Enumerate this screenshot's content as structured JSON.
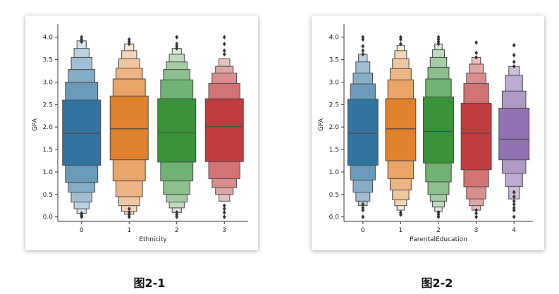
{
  "captions": [
    "图2-1",
    "图2-2"
  ],
  "chart_data": [
    {
      "type": "boxen",
      "xlabel": "Ethnicity",
      "ylabel": "GPA",
      "ylim": [
        -0.1,
        4.2
      ],
      "yticks": [
        0.0,
        0.5,
        1.0,
        1.5,
        2.0,
        2.5,
        3.0,
        3.5,
        4.0
      ],
      "ytick_labels": [
        "0.0",
        "0.5",
        "1.0",
        "1.5",
        "2.0",
        "2.5",
        "3.0",
        "3.5",
        "4.0"
      ],
      "categories": [
        "0",
        "1",
        "2",
        "3"
      ],
      "colors": [
        "#3274a1",
        "#e1812c",
        "#3a923a",
        "#c03d3e"
      ],
      "series": [
        {
          "median": 1.86,
          "boxes": [
            [
              1.15,
              2.6
            ],
            [
              0.77,
              3.0
            ],
            [
              0.55,
              3.28
            ],
            [
              0.33,
              3.55
            ],
            [
              0.18,
              3.75
            ],
            [
              0.08,
              3.92
            ]
          ],
          "outliers": [
            0.0,
            0.04,
            0.08,
            3.9,
            3.95,
            4.0
          ]
        },
        {
          "median": 1.96,
          "boxes": [
            [
              1.27,
              2.69
            ],
            [
              0.8,
              3.07
            ],
            [
              0.45,
              3.31
            ],
            [
              0.25,
              3.52
            ],
            [
              0.12,
              3.7
            ],
            [
              0.06,
              3.85
            ]
          ],
          "outliers": [
            0.0,
            0.05,
            0.1,
            0.18,
            3.85,
            3.9,
            3.95
          ]
        },
        {
          "median": 1.88,
          "boxes": [
            [
              1.22,
              2.63
            ],
            [
              0.8,
              3.05
            ],
            [
              0.5,
              3.28
            ],
            [
              0.33,
              3.45
            ],
            [
              0.2,
              3.62
            ],
            [
              0.1,
              3.75
            ]
          ],
          "outliers": [
            0.0,
            0.05,
            0.1,
            3.75,
            3.8,
            3.85,
            4.0
          ]
        },
        {
          "median": 2.01,
          "boxes": [
            [
              1.23,
              2.63
            ],
            [
              0.85,
              2.97
            ],
            [
              0.65,
              3.2
            ],
            [
              0.5,
              3.35
            ],
            [
              0.35,
              3.52
            ]
          ],
          "outliers": [
            0.0,
            0.1,
            0.18,
            0.25,
            3.62,
            3.7,
            3.85,
            4.0
          ]
        }
      ]
    },
    {
      "type": "boxen",
      "xlabel": "ParentalEducation",
      "ylabel": "GPA",
      "ylim": [
        -0.1,
        4.2
      ],
      "yticks": [
        0.0,
        0.5,
        1.0,
        1.5,
        2.0,
        2.5,
        3.0,
        3.5,
        4.0
      ],
      "ytick_labels": [
        "0.0",
        "0.5",
        "1.0",
        "1.5",
        "2.0",
        "2.5",
        "3.0",
        "3.5",
        "4.0"
      ],
      "categories": [
        "0",
        "1",
        "2",
        "3",
        "4"
      ],
      "colors": [
        "#3274a1",
        "#e1812c",
        "#3a923a",
        "#c03d3e",
        "#9372b2"
      ],
      "series": [
        {
          "median": 1.86,
          "boxes": [
            [
              1.15,
              2.62
            ],
            [
              0.82,
              2.96
            ],
            [
              0.55,
              3.2
            ],
            [
              0.35,
              3.45
            ],
            [
              0.25,
              3.62
            ]
          ],
          "outliers": [
            0.0,
            0.15,
            0.2,
            0.28,
            3.62,
            3.7,
            3.8,
            3.95,
            4.0
          ]
        },
        {
          "median": 1.96,
          "boxes": [
            [
              1.25,
              2.63
            ],
            [
              0.85,
              3.05
            ],
            [
              0.6,
              3.3
            ],
            [
              0.38,
              3.52
            ],
            [
              0.25,
              3.7
            ],
            [
              0.15,
              3.82
            ]
          ],
          "outliers": [
            0.05,
            0.1,
            3.85,
            3.95,
            4.0
          ]
        },
        {
          "median": 1.9,
          "boxes": [
            [
              1.2,
              2.67
            ],
            [
              0.78,
              3.07
            ],
            [
              0.5,
              3.33
            ],
            [
              0.35,
              3.55
            ],
            [
              0.22,
              3.72
            ],
            [
              0.12,
              3.85
            ]
          ],
          "outliers": [
            0.0,
            0.05,
            0.1,
            3.85,
            3.9,
            3.95,
            4.0
          ]
        },
        {
          "median": 1.86,
          "boxes": [
            [
              1.05,
              2.53
            ],
            [
              0.67,
              2.97
            ],
            [
              0.4,
              3.2
            ],
            [
              0.25,
              3.4
            ],
            [
              0.15,
              3.55
            ]
          ],
          "outliers": [
            0.0,
            0.08,
            0.15,
            3.55,
            3.65,
            3.88
          ]
        },
        {
          "median": 1.73,
          "boxes": [
            [
              1.27,
              2.42
            ],
            [
              0.97,
              2.8
            ],
            [
              0.68,
              3.15
            ],
            [
              0.4,
              3.35
            ]
          ],
          "outliers": [
            0.0,
            0.15,
            0.2,
            0.28,
            0.35,
            0.45,
            0.55,
            3.35,
            3.45,
            3.6,
            3.82
          ]
        }
      ]
    }
  ]
}
